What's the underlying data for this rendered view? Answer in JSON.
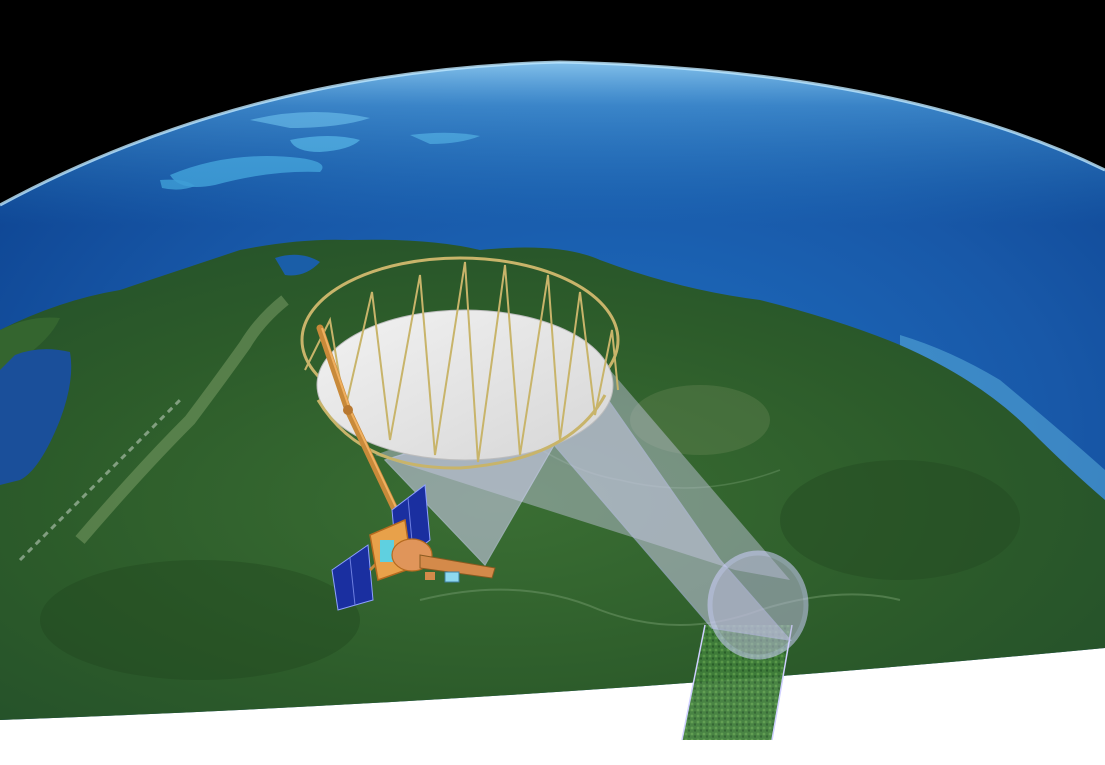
{
  "scene": {
    "subject": "satellite-with-large-reflector-antenna-over-earth",
    "colors": {
      "space": "#000000",
      "ocean_deep": "#0b3f8c",
      "ocean_shallow": "#2f8fd0",
      "land_forest": "#2e5e2a",
      "reflector_surface": "#e6e6e6",
      "truss": "#c8b46a",
      "beam_cone": "#c9c9e6",
      "footprint_ring": "#cfcfff",
      "solar_panel": "#1a2fa0",
      "bus_body": "#e8a14a"
    }
  }
}
